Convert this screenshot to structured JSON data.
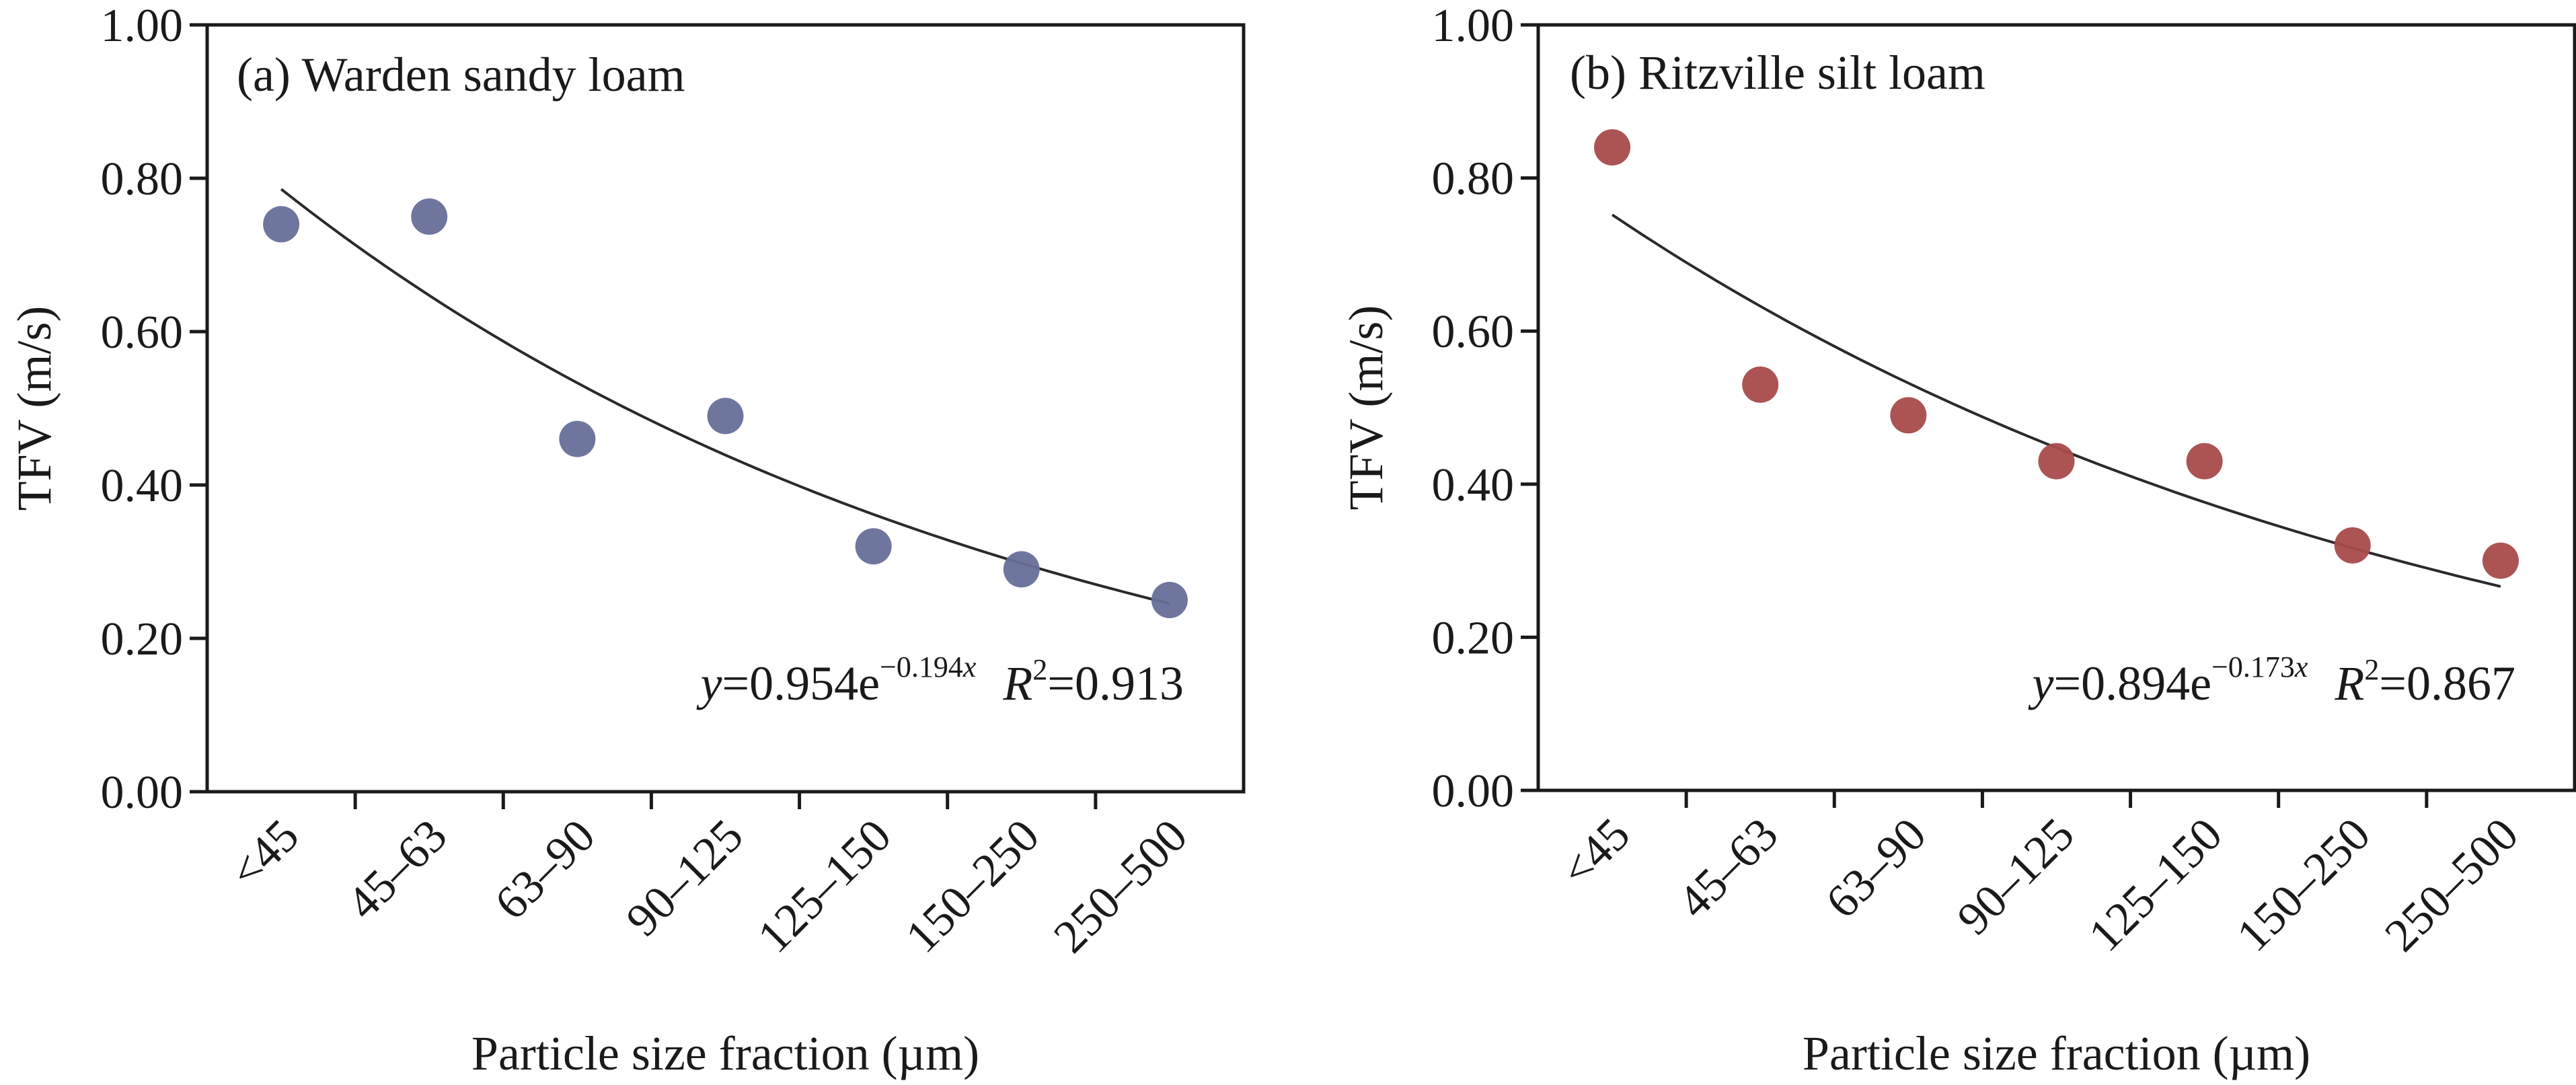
{
  "chart_data": [
    {
      "type": "scatter",
      "panel": "a",
      "title": "(a) Warden sandy loam",
      "xlabel": "Particle size fraction (µm)",
      "ylabel": "TFV (m/s)",
      "categories": [
        "<45",
        "45–63",
        "63–90",
        "90–125",
        "125–150",
        "150–250",
        "250–500"
      ],
      "values": [
        0.74,
        0.75,
        0.46,
        0.49,
        0.32,
        0.29,
        0.25
      ],
      "ylim": [
        0,
        1.0
      ],
      "yticks": [
        "0.00",
        "0.20",
        "0.40",
        "0.60",
        "0.80",
        "1.00"
      ],
      "grid": false,
      "marker_color": "#676f99",
      "fit": {
        "type": "exponential",
        "a": 0.954,
        "b": -0.194,
        "r2": 0.913,
        "label_y": "y",
        "label_coef": "=0.954e",
        "label_exp": "−0.194",
        "label_exp_var": "x",
        "label_r": "R",
        "label_r_sup": "2",
        "label_r_val": "=0.913"
      }
    },
    {
      "type": "scatter",
      "panel": "b",
      "title": "(b) Ritzville silt loam",
      "xlabel": "Particle size fraction (µm)",
      "ylabel": "TFV (m/s)",
      "categories": [
        "<45",
        "45–63",
        "63–90",
        "90–125",
        "125–150",
        "150–250",
        "250–500"
      ],
      "values": [
        0.84,
        0.53,
        0.49,
        0.43,
        0.43,
        0.32,
        0.3
      ],
      "ylim": [
        0,
        1.0
      ],
      "yticks": [
        "0.00",
        "0.20",
        "0.40",
        "0.60",
        "0.80",
        "1.00"
      ],
      "grid": false,
      "marker_color": "#a84a4a",
      "fit": {
        "type": "exponential",
        "a": 0.894,
        "b": -0.173,
        "r2": 0.867,
        "label_y": "y",
        "label_coef": "=0.894e",
        "label_exp": "−0.173",
        "label_exp_var": "x",
        "label_r": "R",
        "label_r_sup": "2",
        "label_r_val": "=0.867"
      }
    }
  ]
}
